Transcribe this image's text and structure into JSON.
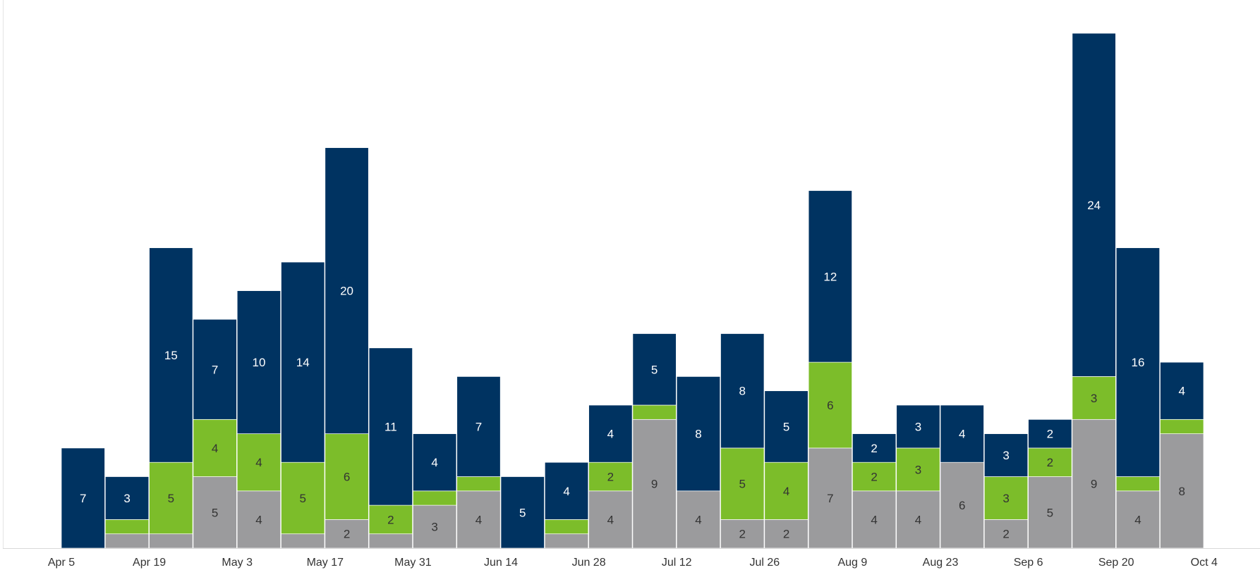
{
  "chart_data": {
    "type": "bar",
    "stacked": true,
    "title": "",
    "xlabel": "",
    "ylabel": "",
    "ylim": [
      0,
      36
    ],
    "grid": false,
    "x_tick_labels": [
      "Apr 5",
      "Apr 19",
      "May 3",
      "May 17",
      "May 31",
      "Jun 14",
      "Jun 28",
      "Jul 12",
      "Jul 26",
      "Aug 9",
      "Aug 23",
      "Sep 6",
      "Sep 20",
      "Oct 4"
    ],
    "categories": [
      "Apr 5",
      "Apr 12",
      "Apr 19",
      "Apr 26",
      "May 3",
      "May 10",
      "May 17",
      "May 24",
      "May 31",
      "Jun 7",
      "Jun 14",
      "Jun 21",
      "Jun 28",
      "Jul 5",
      "Jul 12",
      "Jul 19",
      "Jul 26",
      "Aug 2",
      "Aug 9",
      "Aug 16",
      "Aug 23",
      "Aug 30",
      "Sep 6",
      "Sep 13",
      "Sep 20",
      "Sep 27",
      "Oct 4"
    ],
    "series": [
      {
        "color": "#9b9b9d",
        "values": [
          0,
          1,
          1,
          5,
          4,
          1,
          2,
          1,
          3,
          4,
          0,
          1,
          4,
          9,
          4,
          2,
          2,
          7,
          4,
          4,
          6,
          2,
          5,
          9,
          4,
          8,
          0
        ]
      },
      {
        "color": "#7cbd2a",
        "values": [
          0,
          1,
          5,
          4,
          4,
          5,
          6,
          2,
          1,
          1,
          0,
          1,
          2,
          1,
          0,
          5,
          4,
          6,
          2,
          3,
          0,
          3,
          2,
          3,
          1,
          1,
          0
        ]
      },
      {
        "color": "#003361",
        "values": [
          7,
          3,
          15,
          7,
          10,
          14,
          20,
          11,
          4,
          7,
          5,
          4,
          4,
          5,
          8,
          8,
          5,
          12,
          2,
          3,
          4,
          3,
          2,
          24,
          16,
          4,
          0
        ]
      }
    ],
    "shown_labels": [
      [
        null,
        null,
        null,
        "5",
        "4",
        null,
        "2",
        null,
        "3",
        "4",
        null,
        null,
        "4",
        "9",
        "4",
        "2",
        "2",
        "7",
        "4",
        "4",
        "6",
        "2",
        "5",
        "9",
        "4",
        "8",
        null
      ],
      [
        null,
        null,
        "5",
        "4",
        "4",
        "5",
        "6",
        "2",
        null,
        null,
        null,
        null,
        "2",
        null,
        null,
        "5",
        "4",
        "6",
        "2",
        "3",
        null,
        "3",
        "2",
        "3",
        null,
        null,
        null
      ],
      [
        "7",
        "3",
        "15",
        "7",
        "10",
        "14",
        "20",
        "11",
        "4",
        "7",
        "5",
        "4",
        "4",
        "5",
        "8",
        "8",
        "5",
        "12",
        "2",
        "3",
        "4",
        "3",
        "2",
        "24",
        "16",
        "4",
        null
      ]
    ]
  }
}
